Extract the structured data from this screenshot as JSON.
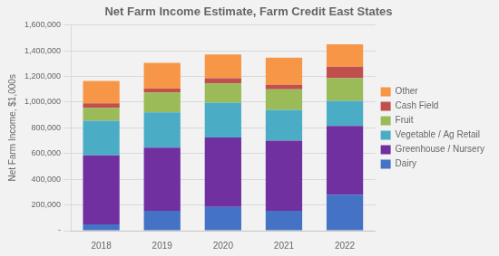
{
  "chart_data": {
    "type": "bar",
    "title": "Net Farm Income Estimate, Farm Credit East States",
    "ylabel": "Net Farm Income, $1,000s",
    "categories": [
      "2018",
      "2019",
      "2020",
      "2021",
      "2022"
    ],
    "series": [
      {
        "name": "Dairy",
        "color": "#4472C4",
        "values": [
          50000,
          155000,
          185000,
          155000,
          280000
        ]
      },
      {
        "name": "Greenhouse / Nursery",
        "color": "#7030A0",
        "values": [
          535000,
          490000,
          540000,
          545000,
          535000
        ]
      },
      {
        "name": "Vegetable / Ag Retail",
        "color": "#4BACC6",
        "values": [
          270000,
          275000,
          270000,
          240000,
          195000
        ]
      },
      {
        "name": "Fruit",
        "color": "#9BBB59",
        "values": [
          100000,
          155000,
          150000,
          160000,
          175000
        ]
      },
      {
        "name": "Cash Field",
        "color": "#C0504D",
        "values": [
          35000,
          30000,
          40000,
          35000,
          90000
        ]
      },
      {
        "name": "Other",
        "color": "#F79646",
        "values": [
          175000,
          200000,
          185000,
          210000,
          175000
        ]
      }
    ],
    "stacked": true,
    "ylim": [
      0,
      1600000
    ],
    "yticks": [
      {
        "value": 0,
        "label": "-"
      },
      {
        "value": 200000,
        "label": "200,000"
      },
      {
        "value": 400000,
        "label": "400,000"
      },
      {
        "value": 600000,
        "label": "600,000"
      },
      {
        "value": 800000,
        "label": "800,000"
      },
      {
        "value": 1000000,
        "label": "1,000,000"
      },
      {
        "value": 1200000,
        "label": "1,200,000"
      },
      {
        "value": 1400000,
        "label": "1,400,000"
      },
      {
        "value": 1600000,
        "label": "1,600,000"
      }
    ],
    "grid": true,
    "legend": "right"
  }
}
